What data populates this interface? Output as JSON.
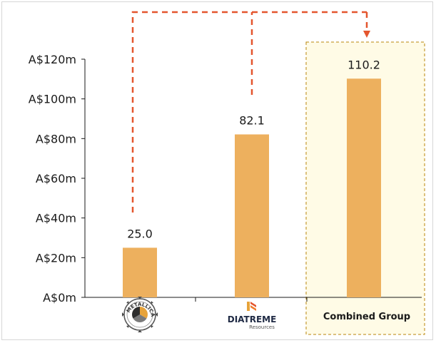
{
  "chart_data": {
    "type": "bar",
    "categories": [
      "Metallica Minerals",
      "Diatreme Resources",
      "Combined Group"
    ],
    "values": [
      25.0,
      82.1,
      110.2
    ],
    "data_labels": [
      "25.0",
      "82.1",
      "110.2"
    ],
    "title": "",
    "xlabel": "",
    "ylabel": "",
    "ylim": [
      0,
      120
    ],
    "y_ticks": [
      0,
      20,
      40,
      60,
      80,
      100,
      120
    ],
    "y_tick_labels": [
      "A$0m",
      "A$20m",
      "A$40m",
      "A$60m",
      "A$80m",
      "A$100m",
      "A$120m"
    ],
    "grid": false,
    "bar_color": "#EDB05E",
    "connector_color": "#E4562E",
    "highlight_box_fill": "#FFFBE6",
    "highlight_box_border": "#B8860B"
  },
  "category_labels": {
    "combined": "Combined Group"
  },
  "logos": {
    "metallica": {
      "ring_text": "METALLICA",
      "icon": "metallica-gear-logo"
    },
    "diatreme": {
      "name": "DIATREME",
      "sub": "Resources",
      "icon": "diatreme-flag-logo"
    }
  }
}
